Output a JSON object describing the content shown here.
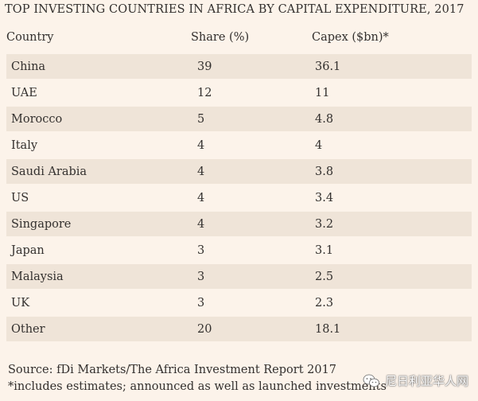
{
  "title": "TOP INVESTING COUNTRIES IN AFRICA BY CAPITAL EXPENDITURE, 2017",
  "headers": {
    "country": "Country",
    "share": "Share (%)",
    "capex": "Capex ($bn)*"
  },
  "footer": {
    "source": "Source: fDi Markets/The Africa Investment Report 2017",
    "note": "*includes estimates; announced as well as launched investments"
  },
  "watermark": {
    "text": "尼日利亚华人网",
    "icon": "wechat-icon"
  },
  "colors": {
    "background": "#fcf3ea",
    "row_shade": "#efe4d8",
    "text": "#33302e"
  },
  "chart_data": {
    "type": "table",
    "title": "TOP INVESTING COUNTRIES IN AFRICA BY CAPITAL EXPENDITURE, 2017",
    "columns": [
      "Country",
      "Share (%)",
      "Capex ($bn)*"
    ],
    "rows": [
      {
        "country": "China",
        "share": "39",
        "capex": "36.1"
      },
      {
        "country": "UAE",
        "share": "12",
        "capex": "11"
      },
      {
        "country": "Morocco",
        "share": "5",
        "capex": "4.8"
      },
      {
        "country": "Italy",
        "share": "4",
        "capex": "4"
      },
      {
        "country": "Saudi Arabia",
        "share": "4",
        "capex": "3.8"
      },
      {
        "country": "US",
        "share": "4",
        "capex": "3.4"
      },
      {
        "country": "Singapore",
        "share": "4",
        "capex": "3.2"
      },
      {
        "country": "Japan",
        "share": "3",
        "capex": "3.1"
      },
      {
        "country": "Malaysia",
        "share": "3",
        "capex": "2.5"
      },
      {
        "country": "UK",
        "share": "3",
        "capex": "2.3"
      },
      {
        "country": "Other",
        "share": "20",
        "capex": "18.1"
      }
    ]
  }
}
